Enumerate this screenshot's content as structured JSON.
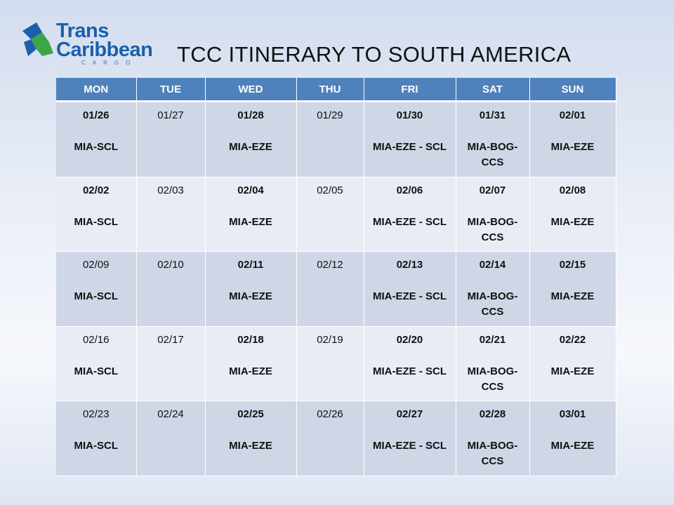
{
  "brand": {
    "line1": "Trans",
    "line2": "Caribbean",
    "sub": "CARGO",
    "colors": {
      "blue": "#1b5fad",
      "green": "#3aa647",
      "header": "#4f81bd"
    }
  },
  "title": "TCC ITINERARY TO SOUTH AMERICA",
  "days": [
    "MON",
    "TUE",
    "WED",
    "THU",
    "FRI",
    "SAT",
    "SUN"
  ],
  "weeks": [
    {
      "style": "dark",
      "cells": [
        {
          "date": "01/26",
          "bold": true,
          "route": "MIA-SCL"
        },
        {
          "date": "01/27",
          "bold": false,
          "route": ""
        },
        {
          "date": "01/28",
          "bold": true,
          "route": "MIA-EZE"
        },
        {
          "date": "01/29",
          "bold": false,
          "route": ""
        },
        {
          "date": "01/30",
          "bold": true,
          "route": "MIA-EZE - SCL"
        },
        {
          "date": "01/31",
          "bold": true,
          "route": "MIA-BOG-CCS"
        },
        {
          "date": "02/01",
          "bold": true,
          "route": "MIA-EZE"
        }
      ]
    },
    {
      "style": "light",
      "cells": [
        {
          "date": "02/02",
          "bold": true,
          "route": "MIA-SCL"
        },
        {
          "date": "02/03",
          "bold": false,
          "route": ""
        },
        {
          "date": "02/04",
          "bold": true,
          "route": "MIA-EZE"
        },
        {
          "date": "02/05",
          "bold": false,
          "route": ""
        },
        {
          "date": "02/06",
          "bold": true,
          "route": "MIA-EZE - SCL"
        },
        {
          "date": "02/07",
          "bold": true,
          "route": "MIA-BOG-CCS"
        },
        {
          "date": "02/08",
          "bold": true,
          "route": "MIA-EZE"
        }
      ]
    },
    {
      "style": "dark",
      "cells": [
        {
          "date": "02/09",
          "bold": false,
          "route": "MIA-SCL"
        },
        {
          "date": "02/10",
          "bold": false,
          "route": ""
        },
        {
          "date": "02/11",
          "bold": true,
          "route": "MIA-EZE"
        },
        {
          "date": "02/12",
          "bold": false,
          "route": ""
        },
        {
          "date": "02/13",
          "bold": true,
          "route": "MIA-EZE - SCL"
        },
        {
          "date": "02/14",
          "bold": true,
          "route": "MIA-BOG-CCS"
        },
        {
          "date": "02/15",
          "bold": true,
          "route": "MIA-EZE"
        }
      ]
    },
    {
      "style": "light",
      "cells": [
        {
          "date": "02/16",
          "bold": false,
          "route": "MIA-SCL"
        },
        {
          "date": "02/17",
          "bold": false,
          "route": ""
        },
        {
          "date": "02/18",
          "bold": true,
          "route": "MIA-EZE"
        },
        {
          "date": "02/19",
          "bold": false,
          "route": ""
        },
        {
          "date": "02/20",
          "bold": true,
          "route": "MIA-EZE - SCL"
        },
        {
          "date": "02/21",
          "bold": true,
          "route": "MIA-BOG-CCS"
        },
        {
          "date": "02/22",
          "bold": true,
          "route": "MIA-EZE"
        }
      ]
    },
    {
      "style": "dark",
      "cells": [
        {
          "date": "02/23",
          "bold": false,
          "route": "MIA-SCL"
        },
        {
          "date": "02/24",
          "bold": false,
          "route": ""
        },
        {
          "date": "02/25",
          "bold": true,
          "route": "MIA-EZE"
        },
        {
          "date": "02/26",
          "bold": false,
          "route": ""
        },
        {
          "date": "02/27",
          "bold": true,
          "route": "MIA-EZE - SCL"
        },
        {
          "date": "02/28",
          "bold": true,
          "route": "MIA-BOG-CCS"
        },
        {
          "date": "03/01",
          "bold": true,
          "route": "MIA-EZE"
        }
      ]
    }
  ]
}
